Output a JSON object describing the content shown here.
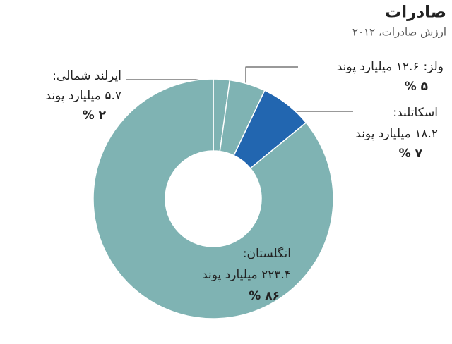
{
  "chart_data": {
    "type": "donut",
    "title": "صادرات",
    "subtitle": "ارزش صادرات، ۲۰۱۲",
    "categories": [
      "ایرلند شمالی:",
      "ولز:",
      "اسکاتلند:",
      "انگلستان:"
    ],
    "values": [
      5.7,
      12.6,
      18.2,
      223.4
    ],
    "value_labels": [
      "۵.۷ میلیارد پوند",
      "۱۲.۶ میلیارد پوند",
      "۱۸.۲ میلیارد پوند",
      "۲۲۳.۴ میلیارد پوند"
    ],
    "percents": [
      2,
      5,
      7,
      86
    ],
    "percent_labels": [
      "۲ %",
      "۵ %",
      "۷ %",
      "۸۶ %"
    ],
    "colors": [
      "#7fb3b3",
      "#7fb3b3",
      "#2266b0",
      "#7fb3b3"
    ]
  }
}
